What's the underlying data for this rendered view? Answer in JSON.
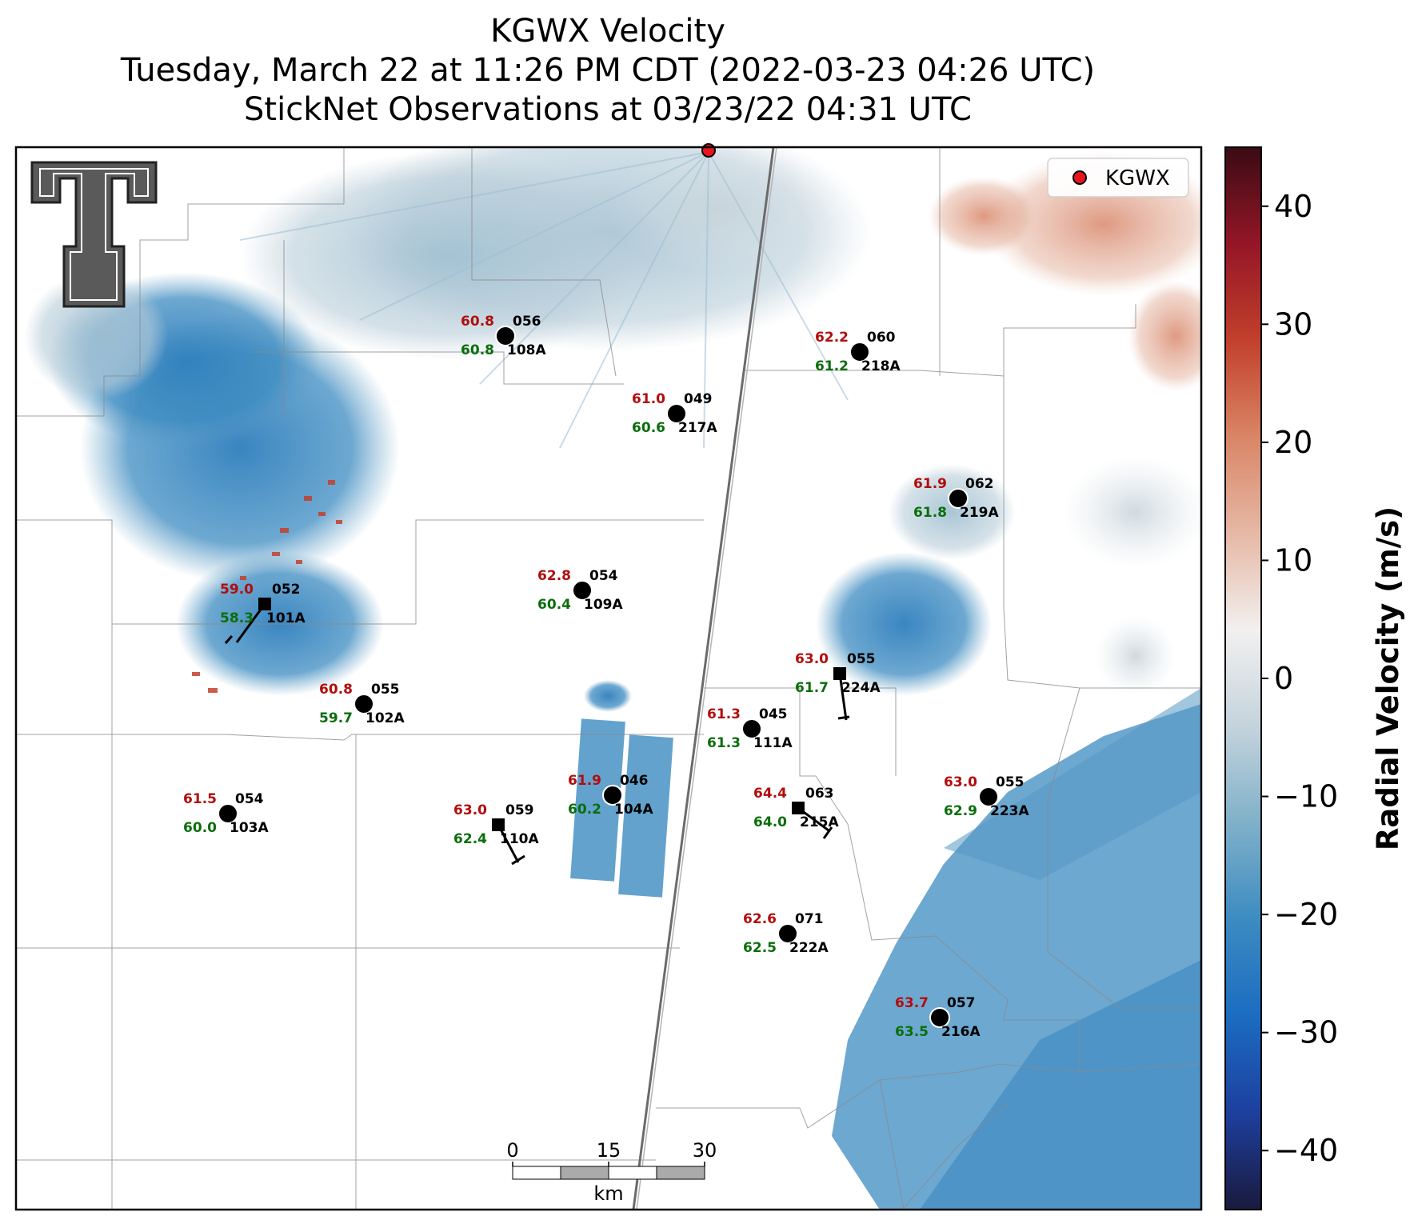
{
  "title": {
    "line1": "KGWX Velocity",
    "line2": "Tuesday, March 22 at 11:26 PM CDT (2022-03-23 04:26 UTC)",
    "line3": "StickNet Observations at 03/23/22 04:31 UTC"
  },
  "legend": {
    "label": "KGWX",
    "marker_color": "#e8141c"
  },
  "colorbar": {
    "label": "Radial Velocity (m/s)",
    "range": [
      -45,
      45
    ],
    "ticks": [
      {
        "value": 40,
        "label": "40"
      },
      {
        "value": 30,
        "label": "30"
      },
      {
        "value": 20,
        "label": "20"
      },
      {
        "value": 10,
        "label": "10"
      },
      {
        "value": 0,
        "label": "0"
      },
      {
        "value": -10,
        "label": "−10"
      },
      {
        "value": -20,
        "label": "−20"
      },
      {
        "value": -30,
        "label": "−30"
      },
      {
        "value": -40,
        "label": "−40"
      }
    ],
    "colormap": [
      "#1a1a3d",
      "#1d3f9e",
      "#1b6cc1",
      "#3c8bc1",
      "#7fb0c9",
      "#c4d3dc",
      "#f2f0ef",
      "#e6b8a5",
      "#d98566",
      "#c2402c",
      "#941626",
      "#3a0b14"
    ]
  },
  "scale_bar": {
    "ticks": [
      "0",
      "15",
      "30"
    ],
    "unit": "km"
  },
  "stations": [
    {
      "id": "108A",
      "temp": "60.8",
      "dew": "60.8",
      "dir": "056",
      "marker": "circle"
    },
    {
      "id": "218A",
      "temp": "62.2",
      "dew": "61.2",
      "dir": "060",
      "marker": "circle"
    },
    {
      "id": "217A",
      "temp": "61.0",
      "dew": "60.6",
      "dir": "049",
      "marker": "circle"
    },
    {
      "id": "219A",
      "temp": "61.9",
      "dew": "61.8",
      "dir": "062",
      "marker": "circle"
    },
    {
      "id": "101A",
      "temp": "59.0",
      "dew": "58.3",
      "dir": "052",
      "marker": "square"
    },
    {
      "id": "109A",
      "temp": "62.8",
      "dew": "60.4",
      "dir": "054",
      "marker": "circle"
    },
    {
      "id": "224A",
      "temp": "63.0",
      "dew": "61.7",
      "dir": "055",
      "marker": "square"
    },
    {
      "id": "102A",
      "temp": "60.8",
      "dew": "59.7",
      "dir": "055",
      "marker": "circle"
    },
    {
      "id": "111A",
      "temp": "61.3",
      "dew": "61.3",
      "dir": "045",
      "marker": "circle"
    },
    {
      "id": "104A",
      "temp": "61.9",
      "dew": "60.2",
      "dir": "046",
      "marker": "circle"
    },
    {
      "id": "215A",
      "temp": "64.4",
      "dew": "64.0",
      "dir": "063",
      "marker": "square"
    },
    {
      "id": "223A",
      "temp": "63.0",
      "dew": "62.9",
      "dir": "055",
      "marker": "circle"
    },
    {
      "id": "103A",
      "temp": "61.5",
      "dew": "60.0",
      "dir": "054",
      "marker": "circle"
    },
    {
      "id": "110A",
      "temp": "63.0",
      "dew": "62.4",
      "dir": "059",
      "marker": "square"
    },
    {
      "id": "222A",
      "temp": "62.6",
      "dew": "62.5",
      "dir": "071",
      "marker": "circle"
    },
    {
      "id": "216A",
      "temp": "63.7",
      "dew": "63.5",
      "dir": "057",
      "marker": "circle"
    }
  ]
}
